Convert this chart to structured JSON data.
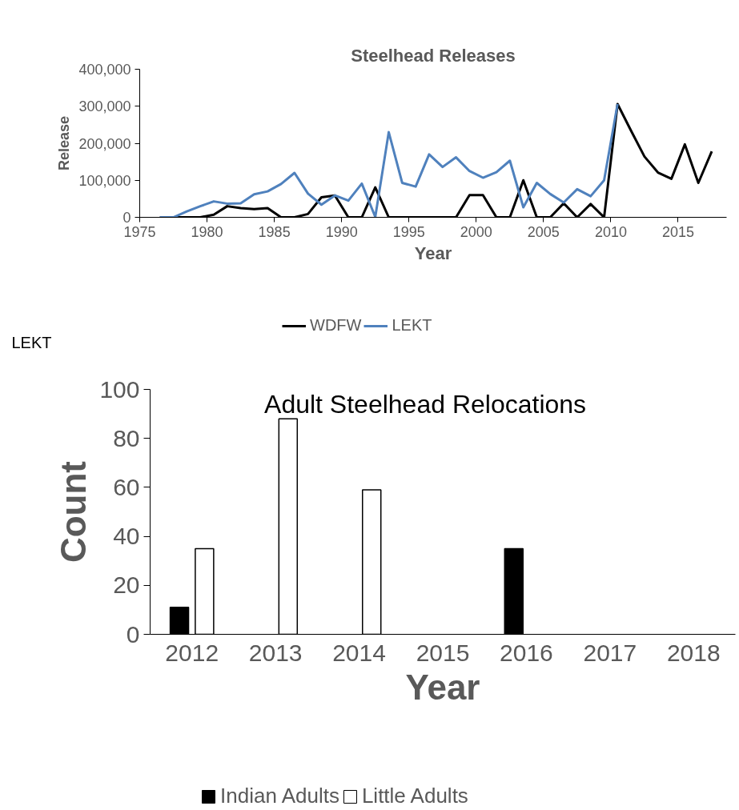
{
  "chart_data": [
    {
      "type": "line",
      "title": "Steelhead Releases",
      "xlabel": "Year",
      "ylabel": "Release",
      "x": [
        1976.5,
        1977.5,
        1978.5,
        1979.5,
        1980.5,
        1981.5,
        1982.5,
        1983.5,
        1984.5,
        1985.5,
        1986.5,
        1987.5,
        1988.5,
        1989.5,
        1990.5,
        1991.5,
        1992.5,
        1993.5,
        1994.5,
        1995.5,
        1996.5,
        1997.5,
        1998.5,
        1999.5,
        2000.5,
        2001.5,
        2002.5,
        2003.5,
        2004.5,
        2005.5,
        2006.5,
        2007.5,
        2008.5,
        2009.5,
        2010.5,
        2011.5,
        2012.5,
        2013.5,
        2014.5,
        2015.5,
        2016.5,
        2017.5
      ],
      "series": [
        {
          "name": "WDFW",
          "color": "#000000",
          "values": [
            0,
            0,
            0,
            0,
            7000,
            30000,
            25000,
            22000,
            25000,
            0,
            0,
            9000,
            54000,
            59000,
            0,
            0,
            81000,
            0,
            0,
            0,
            0,
            0,
            0,
            60000,
            60000,
            0,
            0,
            100000,
            0,
            0,
            38000,
            0,
            36000,
            0,
            306000,
            234000,
            164000,
            121000,
            104000,
            197000,
            93000,
            178000
          ]
        },
        {
          "name": "LEKT",
          "color": "#4f81bd",
          "values": [
            0,
            0,
            16000,
            30000,
            43000,
            37000,
            38000,
            62000,
            70000,
            90000,
            120000,
            64000,
            34000,
            59000,
            45000,
            91000,
            1000,
            230000,
            93000,
            83000,
            170000,
            136000,
            162000,
            125000,
            107000,
            122000,
            153000,
            27000,
            93000,
            63000,
            40000,
            76000,
            57000,
            100000,
            306000,
            null,
            null,
            null,
            null,
            null,
            null,
            null
          ]
        }
      ],
      "xlim": [
        1975,
        2018.6
      ],
      "xticks": [
        1975,
        1980,
        1985,
        1990,
        1995,
        2000,
        2005,
        2010,
        2015
      ],
      "ylim": [
        0,
        400000
      ],
      "yticks": [
        0,
        {
          "value": 100000,
          "label": "100,000"
        },
        {
          "value": 200000,
          "label": "200,000"
        },
        {
          "value": 300000,
          "label": "300,000"
        },
        {
          "value": 400000,
          "label": "400,000"
        }
      ],
      "grid": false,
      "legend": "bottom",
      "line_style": "solid",
      "annotations": [
        "LEKT"
      ]
    },
    {
      "type": "bar",
      "title": "Adult Steelhead Relocations",
      "xlabel": "Year",
      "ylabel": "Count",
      "categories": [
        "2012",
        "2013",
        "2014",
        "2015",
        "2016",
        "2017",
        "2018"
      ],
      "series": [
        {
          "name": "Indian Adults",
          "color": "#000000",
          "values": [
            11,
            null,
            null,
            null,
            35,
            null,
            null
          ]
        },
        {
          "name": "Little Adults",
          "color": "#ffffff",
          "values": [
            35,
            88,
            59,
            null,
            null,
            null,
            null
          ]
        }
      ],
      "ylim": [
        0,
        100
      ],
      "yticks": [
        0,
        20,
        40,
        60,
        80,
        100
      ],
      "grid": false,
      "legend": "bottom"
    }
  ]
}
